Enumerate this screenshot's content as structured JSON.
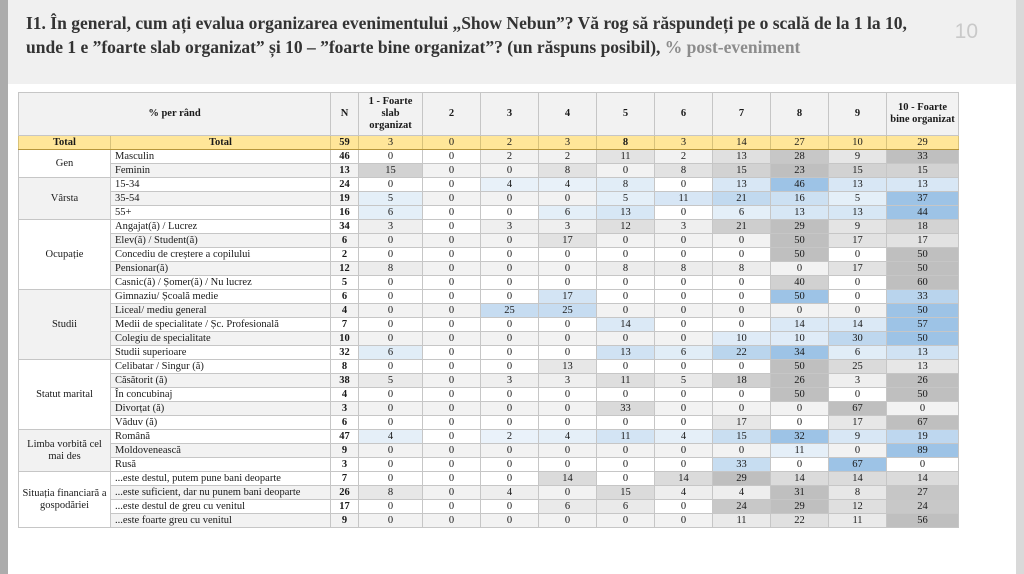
{
  "slide": {
    "title_main": "I1. În general, cum ați evalua organizarea evenimentului „Show Nebun”? Vă rog să răspundeți pe o scală de la 1 la 10, unde 1 e ”foarte slab organizat” și 10 – ”foarte bine organizat”? (un răspuns posibil),",
    "title_suffix": " % post-eveniment",
    "page_number": "10"
  },
  "table": {
    "corner_header": "% per rând",
    "col_headers": [
      "N",
      "1 - Foarte slab organizat",
      "2",
      "3",
      "4",
      "5",
      "6",
      "7",
      "8",
      "9",
      "10 - Foarte bine organizat"
    ],
    "total": {
      "group_label": "Total",
      "row_label": "Total",
      "n": 59,
      "values": [
        3,
        0,
        2,
        3,
        8,
        3,
        14,
        27,
        10,
        29
      ],
      "bold_value_indices": [
        4
      ]
    },
    "groups": [
      {
        "name": "Gen",
        "palette": "gray",
        "rows": [
          {
            "label": "Masculin",
            "n": 46,
            "values": [
              0,
              0,
              2,
              2,
              11,
              2,
              13,
              28,
              9,
              33
            ]
          },
          {
            "label": "Feminin",
            "n": 13,
            "values": [
              15,
              0,
              0,
              8,
              0,
              8,
              15,
              23,
              15,
              15
            ]
          }
        ]
      },
      {
        "name": "Vârsta",
        "palette": "blue",
        "rows": [
          {
            "label": "15-34",
            "n": 24,
            "values": [
              0,
              0,
              4,
              4,
              8,
              0,
              13,
              46,
              13,
              13
            ]
          },
          {
            "label": "35-54",
            "n": 19,
            "values": [
              5,
              0,
              0,
              0,
              5,
              11,
              21,
              16,
              5,
              37
            ]
          },
          {
            "label": "55+",
            "n": 16,
            "values": [
              6,
              0,
              0,
              6,
              13,
              0,
              6,
              13,
              13,
              44
            ]
          }
        ]
      },
      {
        "name": "Ocupație",
        "palette": "gray",
        "rows": [
          {
            "label": "Angajat(ă) / Lucrez",
            "n": 34,
            "values": [
              3,
              0,
              3,
              3,
              12,
              3,
              21,
              29,
              9,
              18
            ]
          },
          {
            "label": "Elev(ă) / Student(ă)",
            "n": 6,
            "values": [
              0,
              0,
              0,
              17,
              0,
              0,
              0,
              50,
              17,
              17
            ]
          },
          {
            "label": "Concediu de creștere a copilului",
            "n": 2,
            "values": [
              0,
              0,
              0,
              0,
              0,
              0,
              0,
              50,
              0,
              50
            ]
          },
          {
            "label": "Pensionar(ă)",
            "n": 12,
            "values": [
              8,
              0,
              0,
              0,
              8,
              8,
              8,
              0,
              17,
              50
            ]
          },
          {
            "label": "Casnic(ă) / Șomer(ă) / Nu lucrez",
            "n": 5,
            "values": [
              0,
              0,
              0,
              0,
              0,
              0,
              0,
              40,
              0,
              60
            ]
          }
        ]
      },
      {
        "name": "Studii",
        "palette": "blue",
        "rows": [
          {
            "label": "Gimnaziu/ Școală medie",
            "n": 6,
            "values": [
              0,
              0,
              0,
              17,
              0,
              0,
              0,
              50,
              0,
              33
            ]
          },
          {
            "label": "Liceal/ mediu general",
            "n": 4,
            "values": [
              0,
              0,
              25,
              25,
              0,
              0,
              0,
              0,
              0,
              50
            ]
          },
          {
            "label": "Medii de specialitate / Șc. Profesională",
            "n": 7,
            "values": [
              0,
              0,
              0,
              0,
              14,
              0,
              0,
              14,
              14,
              57
            ]
          },
          {
            "label": "Colegiu de specialitate",
            "n": 10,
            "values": [
              0,
              0,
              0,
              0,
              0,
              0,
              10,
              10,
              30,
              50
            ]
          },
          {
            "label": "Studii superioare",
            "n": 32,
            "values": [
              6,
              0,
              0,
              0,
              13,
              6,
              22,
              34,
              6,
              13
            ]
          }
        ]
      },
      {
        "name": "Statut marital",
        "palette": "gray",
        "rows": [
          {
            "label": "Celibatar / Singur (ă)",
            "n": 8,
            "values": [
              0,
              0,
              0,
              13,
              0,
              0,
              0,
              50,
              25,
              13
            ]
          },
          {
            "label": "Căsătorit (ă)",
            "n": 38,
            "values": [
              5,
              0,
              3,
              3,
              11,
              5,
              18,
              26,
              3,
              26
            ]
          },
          {
            "label": "În concubinaj",
            "n": 4,
            "values": [
              0,
              0,
              0,
              0,
              0,
              0,
              0,
              50,
              0,
              50
            ]
          },
          {
            "label": "Divorțat (ă)",
            "n": 3,
            "values": [
              0,
              0,
              0,
              0,
              33,
              0,
              0,
              0,
              67,
              0
            ]
          },
          {
            "label": "Văduv (ă)",
            "n": 6,
            "values": [
              0,
              0,
              0,
              0,
              0,
              0,
              17,
              0,
              17,
              67
            ]
          }
        ]
      },
      {
        "name": "Limba vorbită cel mai des",
        "palette": "blue",
        "rows": [
          {
            "label": "Română",
            "n": 47,
            "values": [
              4,
              0,
              2,
              4,
              11,
              4,
              15,
              32,
              9,
              19
            ]
          },
          {
            "label": "Moldovenească",
            "n": 9,
            "values": [
              0,
              0,
              0,
              0,
              0,
              0,
              0,
              11,
              0,
              89
            ]
          },
          {
            "label": "Rusă",
            "n": 3,
            "values": [
              0,
              0,
              0,
              0,
              0,
              0,
              33,
              0,
              67,
              0
            ]
          }
        ]
      },
      {
        "name": "Situația financiară a gospodăriei",
        "palette": "gray",
        "rows": [
          {
            "label": "...este destul, putem pune bani deoparte",
            "n": 7,
            "values": [
              0,
              0,
              0,
              14,
              0,
              14,
              29,
              14,
              14,
              14
            ]
          },
          {
            "label": "...este suficient, dar nu punem bani deoparte",
            "n": 26,
            "values": [
              8,
              0,
              4,
              0,
              15,
              4,
              4,
              31,
              8,
              27
            ]
          },
          {
            "label": "...este destul de greu cu venitul",
            "n": 17,
            "values": [
              0,
              0,
              0,
              6,
              6,
              0,
              24,
              29,
              12,
              24
            ]
          },
          {
            "label": "...este foarte greu cu venitul",
            "n": 9,
            "values": [
              0,
              0,
              0,
              0,
              0,
              0,
              11,
              22,
              11,
              56
            ]
          }
        ]
      }
    ],
    "colors": {
      "total_bg": "#FFE699",
      "heatmap_gray_full": "#BFBFBF",
      "heatmap_blue_full": "#9DC3E6",
      "header_bg": "#F2F2F2",
      "zebra_bg": "#F2F2F2"
    }
  }
}
